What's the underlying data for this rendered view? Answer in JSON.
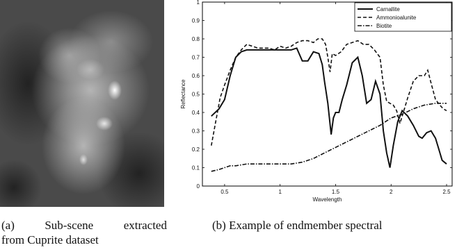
{
  "captions": {
    "a_label": "(a)",
    "a_word1": "Sub-scene",
    "a_word2": "extracted",
    "a_line2": "from Cuprite dataset",
    "b": "(b)  Example of endmember spectral"
  },
  "chart_data": {
    "type": "line",
    "title": "",
    "xlabel": "Wavelength",
    "ylabel": "Reflectance",
    "xlim": [
      0.3,
      2.55
    ],
    "ylim": [
      0,
      1
    ],
    "xticks": [
      0.5,
      1,
      1.5,
      2,
      2.5
    ],
    "xtick_labels": [
      "0.5",
      "1",
      "1.5",
      "2",
      "2.5"
    ],
    "yticks": [
      0,
      0.1,
      0.2,
      0.3,
      0.4,
      0.5,
      0.6,
      0.7,
      0.8,
      0.9,
      1
    ],
    "ytick_labels": [
      "0",
      "0.1",
      "0.2",
      "0.3",
      "0.4",
      "0.5",
      "0.6",
      "0.7",
      "0.8",
      "0.9",
      "1"
    ],
    "grid": false,
    "legend_position": "top-right",
    "series": [
      {
        "name": "Carnallite",
        "style": "solid",
        "x": [
          0.38,
          0.45,
          0.5,
          0.55,
          0.6,
          0.65,
          0.7,
          0.75,
          0.8,
          0.85,
          0.9,
          0.95,
          1.0,
          1.05,
          1.1,
          1.15,
          1.2,
          1.25,
          1.3,
          1.35,
          1.38,
          1.4,
          1.43,
          1.46,
          1.48,
          1.5,
          1.53,
          1.56,
          1.6,
          1.65,
          1.7,
          1.74,
          1.78,
          1.82,
          1.86,
          1.9,
          1.93,
          1.96,
          1.99,
          2.02,
          2.06,
          2.1,
          2.15,
          2.2,
          2.25,
          2.28,
          2.32,
          2.36,
          2.4,
          2.43,
          2.46,
          2.5
        ],
        "y": [
          0.38,
          0.42,
          0.47,
          0.6,
          0.7,
          0.73,
          0.74,
          0.74,
          0.74,
          0.74,
          0.74,
          0.74,
          0.74,
          0.74,
          0.74,
          0.75,
          0.68,
          0.68,
          0.73,
          0.72,
          0.66,
          0.57,
          0.45,
          0.28,
          0.37,
          0.4,
          0.4,
          0.47,
          0.55,
          0.67,
          0.7,
          0.6,
          0.45,
          0.47,
          0.57,
          0.5,
          0.3,
          0.18,
          0.1,
          0.22,
          0.35,
          0.41,
          0.38,
          0.33,
          0.27,
          0.26,
          0.29,
          0.3,
          0.26,
          0.2,
          0.14,
          0.12
        ]
      },
      {
        "name": "Ammonioalunite",
        "style": "dashed",
        "x": [
          0.38,
          0.42,
          0.46,
          0.5,
          0.55,
          0.6,
          0.65,
          0.7,
          0.75,
          0.8,
          0.85,
          0.9,
          0.95,
          1.0,
          1.05,
          1.1,
          1.15,
          1.2,
          1.25,
          1.3,
          1.34,
          1.38,
          1.41,
          1.43,
          1.45,
          1.47,
          1.5,
          1.55,
          1.6,
          1.65,
          1.7,
          1.75,
          1.8,
          1.85,
          1.9,
          1.93,
          1.96,
          1.99,
          2.02,
          2.05,
          2.08,
          2.11,
          2.15,
          2.2,
          2.25,
          2.3,
          2.33,
          2.36,
          2.4,
          2.44,
          2.47,
          2.5
        ],
        "y": [
          0.22,
          0.35,
          0.48,
          0.55,
          0.63,
          0.7,
          0.74,
          0.77,
          0.76,
          0.75,
          0.75,
          0.75,
          0.74,
          0.76,
          0.75,
          0.76,
          0.78,
          0.79,
          0.79,
          0.78,
          0.8,
          0.8,
          0.77,
          0.7,
          0.62,
          0.72,
          0.71,
          0.73,
          0.77,
          0.78,
          0.79,
          0.77,
          0.77,
          0.74,
          0.7,
          0.55,
          0.46,
          0.45,
          0.44,
          0.41,
          0.34,
          0.4,
          0.48,
          0.57,
          0.6,
          0.6,
          0.63,
          0.56,
          0.47,
          0.44,
          0.42,
          0.41
        ]
      },
      {
        "name": "Biotite",
        "style": "dashdot",
        "x": [
          0.38,
          0.45,
          0.5,
          0.55,
          0.6,
          0.7,
          0.8,
          0.9,
          1.0,
          1.1,
          1.2,
          1.3,
          1.4,
          1.5,
          1.6,
          1.7,
          1.8,
          1.9,
          2.0,
          2.1,
          2.2,
          2.3,
          2.4,
          2.5
        ],
        "y": [
          0.08,
          0.09,
          0.1,
          0.11,
          0.11,
          0.12,
          0.12,
          0.12,
          0.12,
          0.12,
          0.13,
          0.15,
          0.18,
          0.21,
          0.24,
          0.27,
          0.3,
          0.33,
          0.37,
          0.39,
          0.42,
          0.44,
          0.45,
          0.45
        ]
      }
    ]
  }
}
